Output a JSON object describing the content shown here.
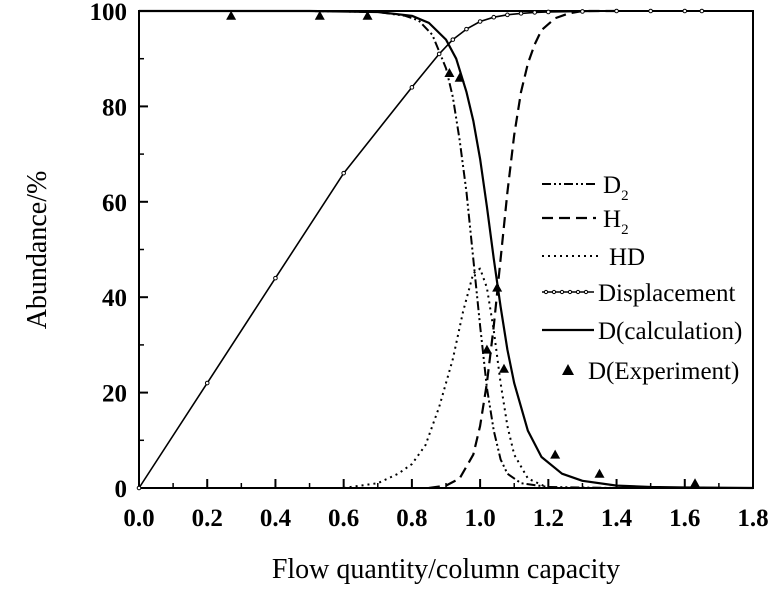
{
  "chart_data": {
    "type": "line",
    "xlabel": "Flow quantity/column capacity",
    "ylabel": "Abundance/%",
    "xlim": [
      0.0,
      1.8
    ],
    "ylim": [
      0,
      100
    ],
    "xticks": [
      "0.0",
      "0.2",
      "0.4",
      "0.6",
      "0.8",
      "1.0",
      "1.2",
      "1.4",
      "1.6",
      "1.8"
    ],
    "yticks": [
      "0",
      "20",
      "40",
      "60",
      "80",
      "100"
    ],
    "grid": false,
    "legend_position": "right",
    "legend": [
      {
        "name": "D",
        "subscript": "2"
      },
      {
        "name": "H",
        "subscript": "2"
      },
      {
        "name": "HD"
      },
      {
        "name": "Displacement"
      },
      {
        "name": "D(calculation)"
      },
      {
        "name": "D(Experiment)"
      }
    ],
    "series": [
      {
        "name": "D2",
        "style": "dash-dot-dot",
        "x": [
          0.0,
          0.5,
          0.7,
          0.78,
          0.82,
          0.86,
          0.9,
          0.92,
          0.94,
          0.96,
          0.98,
          1.0,
          1.02,
          1.04,
          1.06,
          1.08,
          1.12,
          1.2,
          1.4
        ],
        "y": [
          100,
          100,
          99.8,
          99,
          98,
          95,
          88,
          82,
          73,
          62,
          48,
          34,
          21,
          12,
          6,
          3,
          1,
          0.2,
          0
        ]
      },
      {
        "name": "H2",
        "style": "dashed",
        "x": [
          0.85,
          0.9,
          0.94,
          0.98,
          1.0,
          1.02,
          1.04,
          1.06,
          1.08,
          1.1,
          1.12,
          1.14,
          1.16,
          1.18,
          1.22,
          1.26,
          1.3,
          1.35,
          1.4
        ],
        "y": [
          0,
          0.5,
          2,
          7,
          13,
          22,
          34,
          48,
          62,
          74,
          83,
          89,
          93,
          96,
          98.5,
          99.5,
          100,
          100,
          100
        ]
      },
      {
        "name": "HD",
        "style": "dotted",
        "x": [
          0.6,
          0.7,
          0.76,
          0.8,
          0.84,
          0.88,
          0.92,
          0.95,
          0.98,
          1.0,
          1.02,
          1.04,
          1.06,
          1.08,
          1.1,
          1.14,
          1.2
        ],
        "y": [
          0,
          1,
          3,
          5,
          9,
          17,
          27,
          37,
          45,
          46,
          42,
          33,
          22,
          13,
          7,
          2,
          0
        ]
      },
      {
        "name": "Displacement",
        "style": "solid-small-circles",
        "x": [
          0.0,
          0.2,
          0.4,
          0.6,
          0.8,
          0.88,
          0.92,
          0.96,
          1.0,
          1.04,
          1.08,
          1.12,
          1.16,
          1.2,
          1.3,
          1.4,
          1.5,
          1.6,
          1.65
        ],
        "y": [
          0,
          22,
          44,
          66,
          84,
          91,
          94,
          96.2,
          97.8,
          98.7,
          99.2,
          99.5,
          99.7,
          99.8,
          99.9,
          100,
          100,
          100,
          100
        ]
      },
      {
        "name": "D(calculation)",
        "style": "solid",
        "x": [
          0.0,
          0.5,
          0.7,
          0.8,
          0.85,
          0.9,
          0.93,
          0.96,
          0.98,
          1.0,
          1.02,
          1.04,
          1.06,
          1.08,
          1.1,
          1.14,
          1.18,
          1.24,
          1.3,
          1.4,
          1.5,
          1.6,
          1.8
        ],
        "y": [
          100,
          100,
          99.8,
          99,
          97.5,
          94,
          90,
          83,
          77,
          69,
          59,
          48,
          38,
          29,
          22,
          12,
          6.5,
          3,
          1.5,
          0.5,
          0.2,
          0.1,
          0
        ]
      },
      {
        "name": "D(Experiment)",
        "style": "triangles",
        "x": [
          0.27,
          0.53,
          0.67,
          0.91,
          0.94,
          1.02,
          1.05,
          1.07,
          1.22,
          1.35,
          1.63
        ],
        "y": [
          99,
          99,
          99,
          87,
          86,
          29,
          42,
          25,
          7,
          3,
          1
        ]
      }
    ]
  }
}
